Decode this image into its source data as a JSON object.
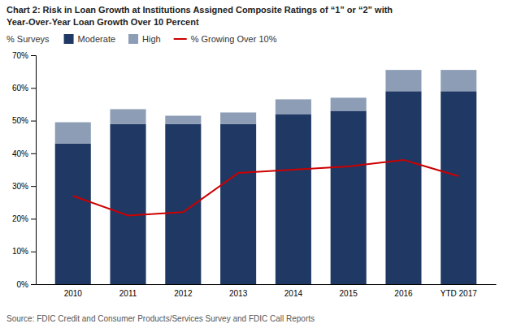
{
  "chart_data": {
    "type": "bar",
    "title": "Chart 2: Risk in Loan Growth at Institutions Assigned Composite Ratings of “1” or “2” with",
    "subtitle": "Year-Over-Year Loan Growth Over 10 Percent",
    "ylabel": "% Surveys",
    "annotations": [
      "Source: FDIC Credit and Consumer Products/Services Survey and FDIC Call Reports"
    ],
    "categories": [
      "2010",
      "2011",
      "2012",
      "2013",
      "2014",
      "2015",
      "2016",
      "YTD 2017"
    ],
    "series": [
      {
        "name": "Moderate",
        "type": "bar",
        "color": "#1F3864",
        "values": [
          43,
          49,
          49,
          49,
          52,
          53,
          59,
          59
        ]
      },
      {
        "name": "High",
        "type": "bar",
        "color": "#8C9DB5",
        "values": [
          6.5,
          4.5,
          2.5,
          3.5,
          4.5,
          4,
          6.5,
          6.5
        ]
      },
      {
        "name": "% Growing Over 10%",
        "type": "line",
        "color": "#CC0000",
        "values": [
          27,
          21,
          22,
          34,
          35,
          36,
          38,
          33
        ]
      }
    ],
    "stacked": true,
    "ylim": [
      0,
      70
    ],
    "yticks": [
      {
        "value": 0,
        "label": "0%"
      },
      {
        "value": 10,
        "label": "10%"
      },
      {
        "value": 20,
        "label": "20%"
      },
      {
        "value": 30,
        "label": "30%"
      },
      {
        "value": 40,
        "label": "40%"
      },
      {
        "value": 50,
        "label": "50%"
      },
      {
        "value": 60,
        "label": "60%"
      },
      {
        "value": 70,
        "label": "70%"
      }
    ],
    "grid": false,
    "legend": "top-left"
  }
}
